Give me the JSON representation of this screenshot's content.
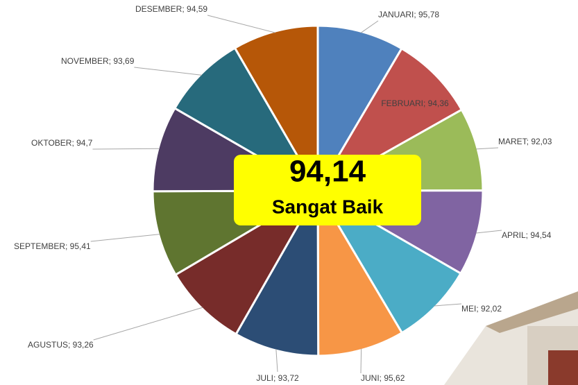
{
  "chart_data": {
    "type": "pie",
    "values": [
      95.78,
      94.36,
      92.03,
      94.54,
      92.02,
      95.62,
      93.72,
      93.26,
      95.41,
      94.7,
      93.69,
      94.59
    ],
    "value_labels": [
      "JANUARI; 95,78",
      "FEBRUARI; 94,36",
      "MARET; 92,03",
      "APRIL; 94,54",
      "MEI; 92,02",
      "JUNI; 95,62",
      "JULI; 93,72",
      "AGUSTUS; 93,26",
      "SEPTEMBER; 95,41",
      "OKTOBER; 94,7",
      "NOVEMBER; 93,69",
      "DESEMBER; 94,59"
    ],
    "colors": [
      "#4f81bd",
      "#c0504d",
      "#9bbb59",
      "#8064a2",
      "#4bacc6",
      "#f79646",
      "#2c4d75",
      "#772c2a",
      "#5f7530",
      "#4d3b62",
      "#276a7c",
      "#b65708"
    ],
    "center_value": "94,14",
    "center_text": "Sangat Baik"
  }
}
